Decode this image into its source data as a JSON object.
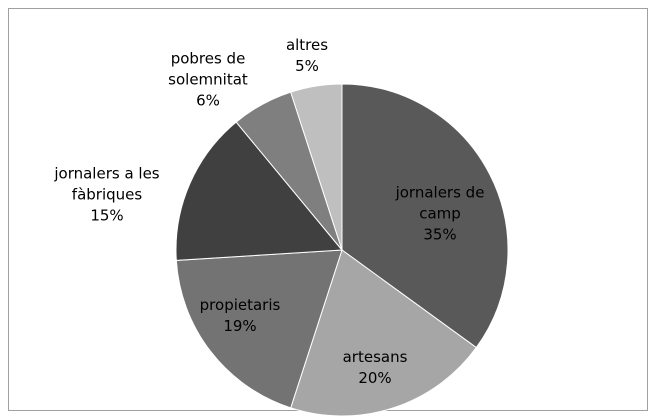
{
  "chart_data": {
    "type": "pie",
    "categories": [
      "jornalers de camp",
      "artesans",
      "propietaris",
      "jornalers a les fàbriques",
      "pobres de solemnitat",
      "altres"
    ],
    "values": [
      35,
      20,
      19,
      15,
      6,
      5
    ],
    "value_labels": [
      "35%",
      "20%",
      "19%",
      "15%",
      "6%",
      "5%"
    ],
    "colors": [
      "#595959",
      "#a6a6a6",
      "#737373",
      "#404040",
      "#7f7f7f",
      "#bfbfbf"
    ]
  }
}
